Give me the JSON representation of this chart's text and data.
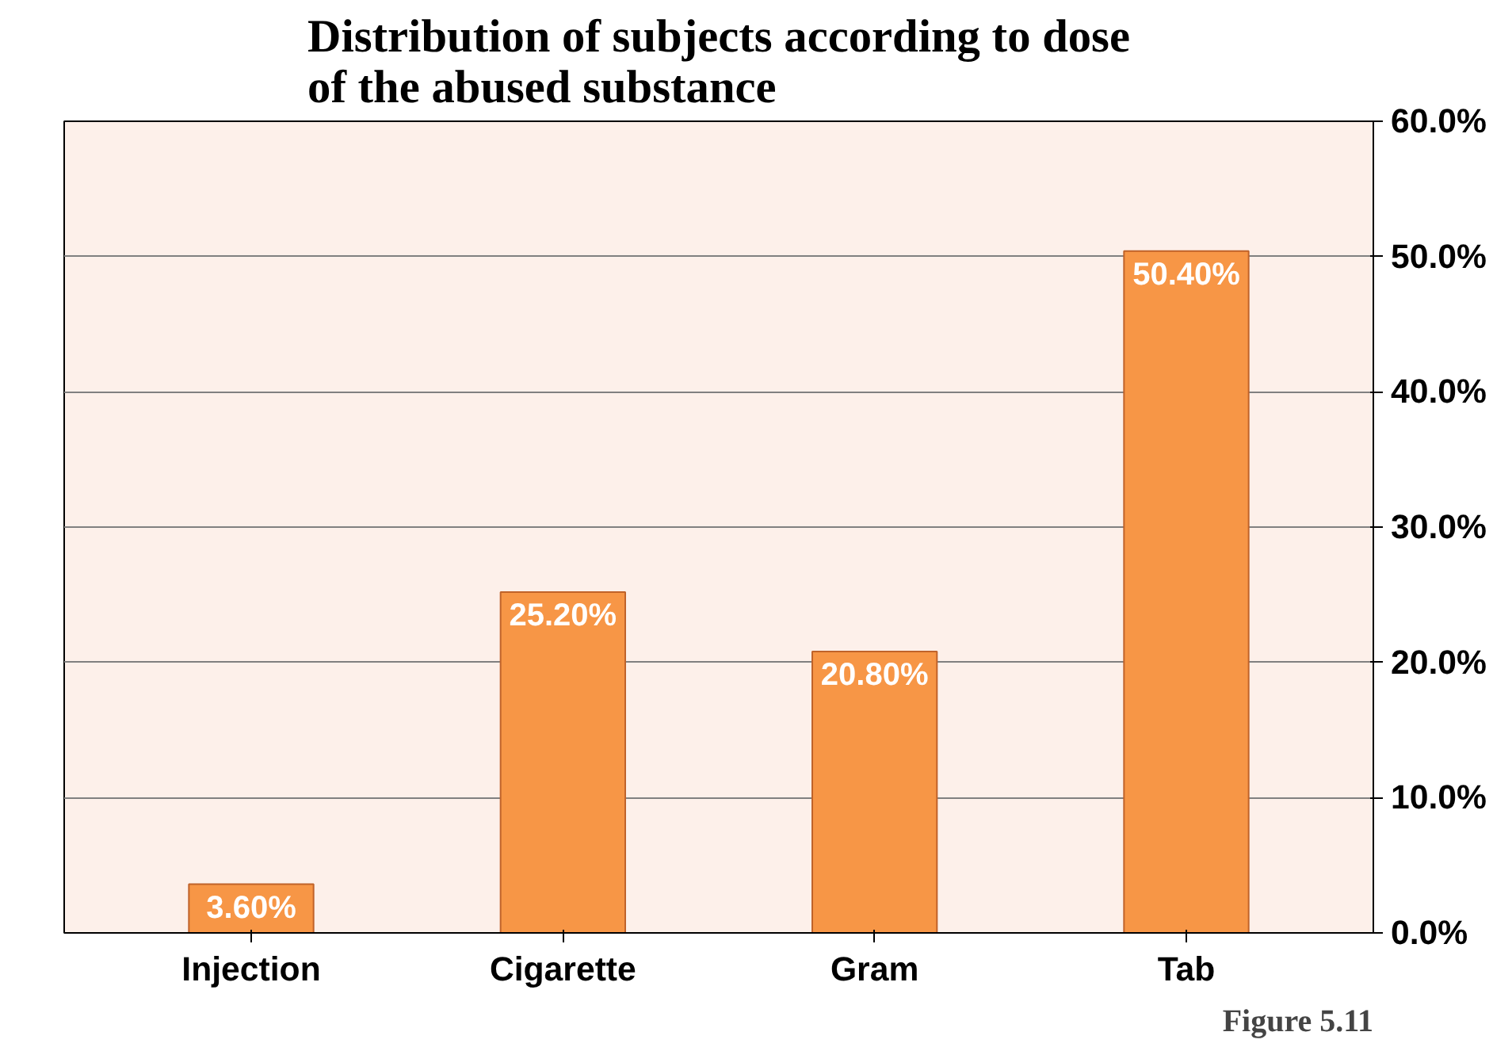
{
  "chart_data": {
    "type": "bar",
    "title": "Distribution of subjects according to dose\nof the abused substance",
    "categories": [
      "Injection",
      "Cigarette",
      "Gram",
      "Tab"
    ],
    "values": [
      3.6,
      25.2,
      20.8,
      50.4
    ],
    "value_labels": [
      "3.60%",
      "25.20%",
      "20.80%",
      "50.40%"
    ],
    "color": "#f79646",
    "ylim": [
      0,
      60
    ],
    "yticks": [
      {
        "value": 0,
        "label": "0.0%"
      },
      {
        "value": 10,
        "label": "10.0%"
      },
      {
        "value": 20,
        "label": "20.0%"
      },
      {
        "value": 30,
        "label": "30.0%"
      },
      {
        "value": 40,
        "label": "40.0%"
      },
      {
        "value": 50,
        "label": "50.0%"
      },
      {
        "value": 60,
        "label": "60.0%"
      }
    ],
    "grid": "y",
    "annotations": [
      "Figure 5.11"
    ]
  }
}
